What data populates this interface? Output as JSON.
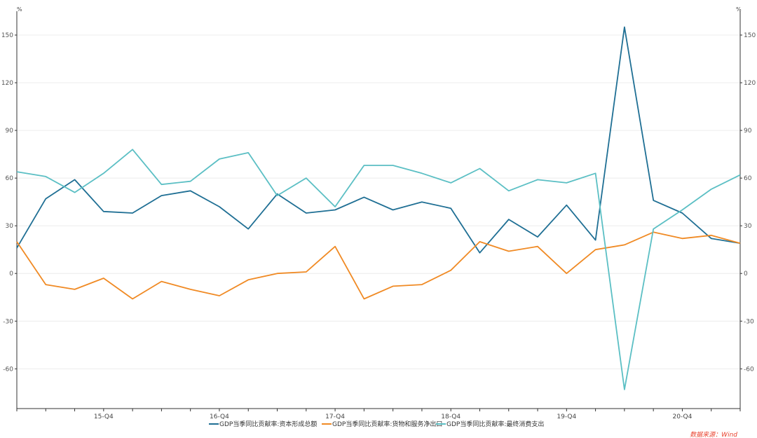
{
  "chart_data": {
    "type": "line",
    "unit_label": "%",
    "unit_label_right": "%",
    "ylim": [
      -85,
      165
    ],
    "yticks": [
      150,
      120,
      90,
      60,
      30,
      0,
      -30,
      -60
    ],
    "xtick_labels": [
      {
        "label": "15-Q4",
        "index": 3
      },
      {
        "label": "16-Q4",
        "index": 7
      },
      {
        "label": "17-Q4",
        "index": 11
      },
      {
        "label": "18-Q4",
        "index": 15
      },
      {
        "label": "19-Q4",
        "index": 19
      },
      {
        "label": "20-Q4",
        "index": 23
      }
    ],
    "n_points": 26,
    "grid": true,
    "legend_position": "bottom",
    "series": [
      {
        "name": "GDP当季同比贡献率:资本形成总额",
        "color": "#1f6f94",
        "values": [
          16,
          47,
          59,
          39,
          38,
          49,
          52,
          42,
          28,
          50,
          38,
          40,
          48,
          40,
          45,
          41,
          13,
          34,
          23,
          43,
          21,
          155,
          46,
          38,
          22,
          19
        ]
      },
      {
        "name": "GDP当季同比贡献率:货物和服务净出口",
        "color": "#f08a24",
        "values": [
          20,
          -7,
          -10,
          -3,
          -16,
          -5,
          -10,
          -14,
          -4,
          0,
          1,
          17,
          -16,
          -8,
          -7,
          2,
          20,
          14,
          17,
          0,
          15,
          18,
          26,
          22,
          24,
          19
        ]
      },
      {
        "name": "GDP当季同比贡献率:最终消费支出",
        "color": "#5bbfc4",
        "values": [
          64,
          61,
          51,
          63,
          78,
          56,
          58,
          72,
          76,
          49,
          60,
          42,
          68,
          68,
          63,
          57,
          66,
          52,
          59,
          57,
          63,
          -73,
          28,
          40,
          53,
          62
        ]
      }
    ]
  },
  "source_label": "数据来源：Wind"
}
